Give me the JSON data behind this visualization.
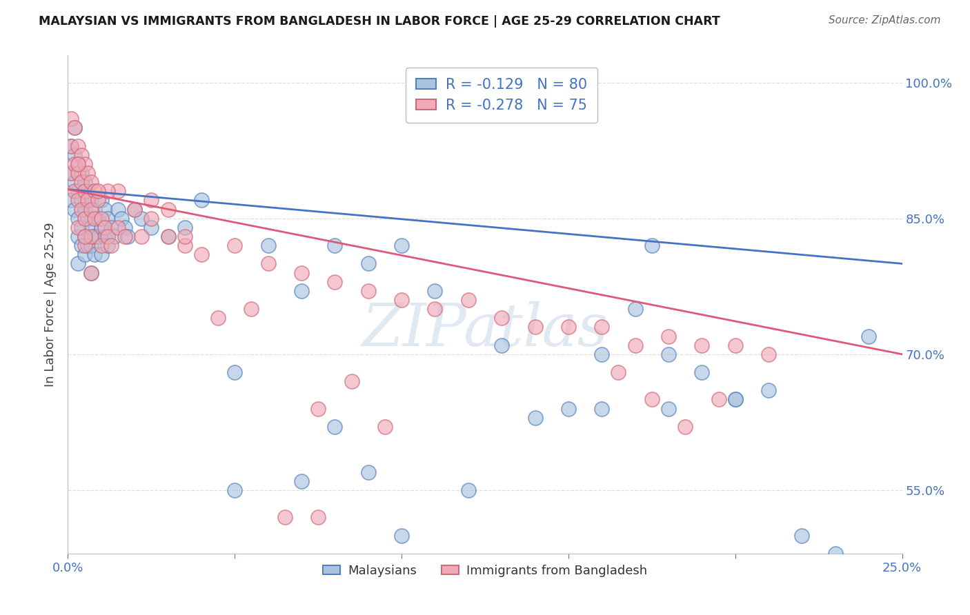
{
  "title": "MALAYSIAN VS IMMIGRANTS FROM BANGLADESH IN LABOR FORCE | AGE 25-29 CORRELATION CHART",
  "source": "Source: ZipAtlas.com",
  "ylabel": "In Labor Force | Age 25-29",
  "xlim": [
    0.0,
    0.25
  ],
  "ylim": [
    0.48,
    1.03
  ],
  "xticks": [
    0.0,
    0.05,
    0.1,
    0.15,
    0.2,
    0.25
  ],
  "xtick_labels": [
    "0.0%",
    "",
    "",
    "",
    "",
    "25.0%"
  ],
  "yticks": [
    0.55,
    0.7,
    0.85,
    1.0
  ],
  "ytick_labels": [
    "55.0%",
    "70.0%",
    "85.0%",
    "100.0%"
  ],
  "legend_labels": [
    "Malaysians",
    "Immigrants from Bangladesh"
  ],
  "blue_R": -0.129,
  "blue_N": 80,
  "pink_R": -0.278,
  "pink_N": 75,
  "blue_fill": "#aac4e0",
  "blue_edge": "#5580c0",
  "pink_fill": "#f0aab8",
  "pink_edge": "#d06878",
  "blue_line": "#4472c4",
  "pink_line": "#e05878",
  "title_color": "#1a1a1a",
  "source_color": "#666666",
  "tick_color": "#4472c4",
  "grid_color": "#dddddd",
  "blue_trend_x0": 0.0,
  "blue_trend_y0": 0.882,
  "blue_trend_x1": 0.25,
  "blue_trend_y1": 0.8,
  "pink_trend_x0": 0.0,
  "pink_trend_y0": 0.882,
  "pink_trend_x1": 0.25,
  "pink_trend_y1": 0.7,
  "blue_scatter_x": [
    0.001,
    0.001,
    0.001,
    0.002,
    0.002,
    0.002,
    0.002,
    0.003,
    0.003,
    0.003,
    0.003,
    0.003,
    0.004,
    0.004,
    0.004,
    0.004,
    0.005,
    0.005,
    0.005,
    0.005,
    0.006,
    0.006,
    0.006,
    0.007,
    0.007,
    0.007,
    0.007,
    0.008,
    0.008,
    0.008,
    0.009,
    0.009,
    0.01,
    0.01,
    0.01,
    0.011,
    0.011,
    0.012,
    0.012,
    0.013,
    0.014,
    0.015,
    0.016,
    0.017,
    0.018,
    0.02,
    0.022,
    0.025,
    0.03,
    0.035,
    0.04,
    0.05,
    0.06,
    0.07,
    0.08,
    0.09,
    0.1,
    0.11,
    0.13,
    0.15,
    0.16,
    0.17,
    0.175,
    0.18,
    0.19,
    0.2,
    0.21,
    0.22,
    0.23,
    0.24,
    0.16,
    0.18,
    0.2,
    0.09,
    0.07,
    0.14,
    0.12,
    0.1,
    0.08,
    0.05
  ],
  "blue_scatter_y": [
    0.93,
    0.9,
    0.87,
    0.95,
    0.92,
    0.89,
    0.86,
    0.91,
    0.88,
    0.85,
    0.83,
    0.8,
    0.9,
    0.87,
    0.84,
    0.82,
    0.89,
    0.86,
    0.83,
    0.81,
    0.88,
    0.85,
    0.82,
    0.87,
    0.84,
    0.82,
    0.79,
    0.86,
    0.83,
    0.81,
    0.85,
    0.83,
    0.87,
    0.84,
    0.81,
    0.86,
    0.83,
    0.85,
    0.82,
    0.84,
    0.83,
    0.86,
    0.85,
    0.84,
    0.83,
    0.86,
    0.85,
    0.84,
    0.83,
    0.84,
    0.87,
    0.68,
    0.82,
    0.77,
    0.82,
    0.8,
    0.82,
    0.77,
    0.71,
    0.64,
    0.7,
    0.75,
    0.82,
    0.64,
    0.68,
    0.65,
    0.66,
    0.5,
    0.48,
    0.72,
    0.64,
    0.7,
    0.65,
    0.57,
    0.56,
    0.63,
    0.55,
    0.5,
    0.62,
    0.55
  ],
  "pink_scatter_x": [
    0.001,
    0.001,
    0.001,
    0.002,
    0.002,
    0.002,
    0.003,
    0.003,
    0.003,
    0.003,
    0.004,
    0.004,
    0.004,
    0.005,
    0.005,
    0.005,
    0.005,
    0.006,
    0.006,
    0.007,
    0.007,
    0.007,
    0.008,
    0.008,
    0.009,
    0.01,
    0.01,
    0.011,
    0.012,
    0.013,
    0.015,
    0.017,
    0.02,
    0.022,
    0.025,
    0.03,
    0.035,
    0.04,
    0.05,
    0.06,
    0.07,
    0.08,
    0.09,
    0.1,
    0.11,
    0.12,
    0.13,
    0.14,
    0.15,
    0.16,
    0.17,
    0.18,
    0.19,
    0.2,
    0.21,
    0.075,
    0.085,
    0.095,
    0.055,
    0.045,
    0.035,
    0.165,
    0.175,
    0.185,
    0.195,
    0.065,
    0.075,
    0.03,
    0.025,
    0.015,
    0.012,
    0.009,
    0.007,
    0.005,
    0.003
  ],
  "pink_scatter_y": [
    0.96,
    0.93,
    0.9,
    0.95,
    0.91,
    0.88,
    0.93,
    0.9,
    0.87,
    0.84,
    0.92,
    0.89,
    0.86,
    0.91,
    0.88,
    0.85,
    0.82,
    0.9,
    0.87,
    0.89,
    0.86,
    0.83,
    0.88,
    0.85,
    0.87,
    0.85,
    0.82,
    0.84,
    0.83,
    0.82,
    0.84,
    0.83,
    0.86,
    0.83,
    0.85,
    0.83,
    0.82,
    0.81,
    0.82,
    0.8,
    0.79,
    0.78,
    0.77,
    0.76,
    0.75,
    0.76,
    0.74,
    0.73,
    0.73,
    0.73,
    0.71,
    0.72,
    0.71,
    0.71,
    0.7,
    0.64,
    0.67,
    0.62,
    0.75,
    0.74,
    0.83,
    0.68,
    0.65,
    0.62,
    0.65,
    0.52,
    0.52,
    0.86,
    0.87,
    0.88,
    0.88,
    0.88,
    0.79,
    0.83,
    0.91
  ]
}
